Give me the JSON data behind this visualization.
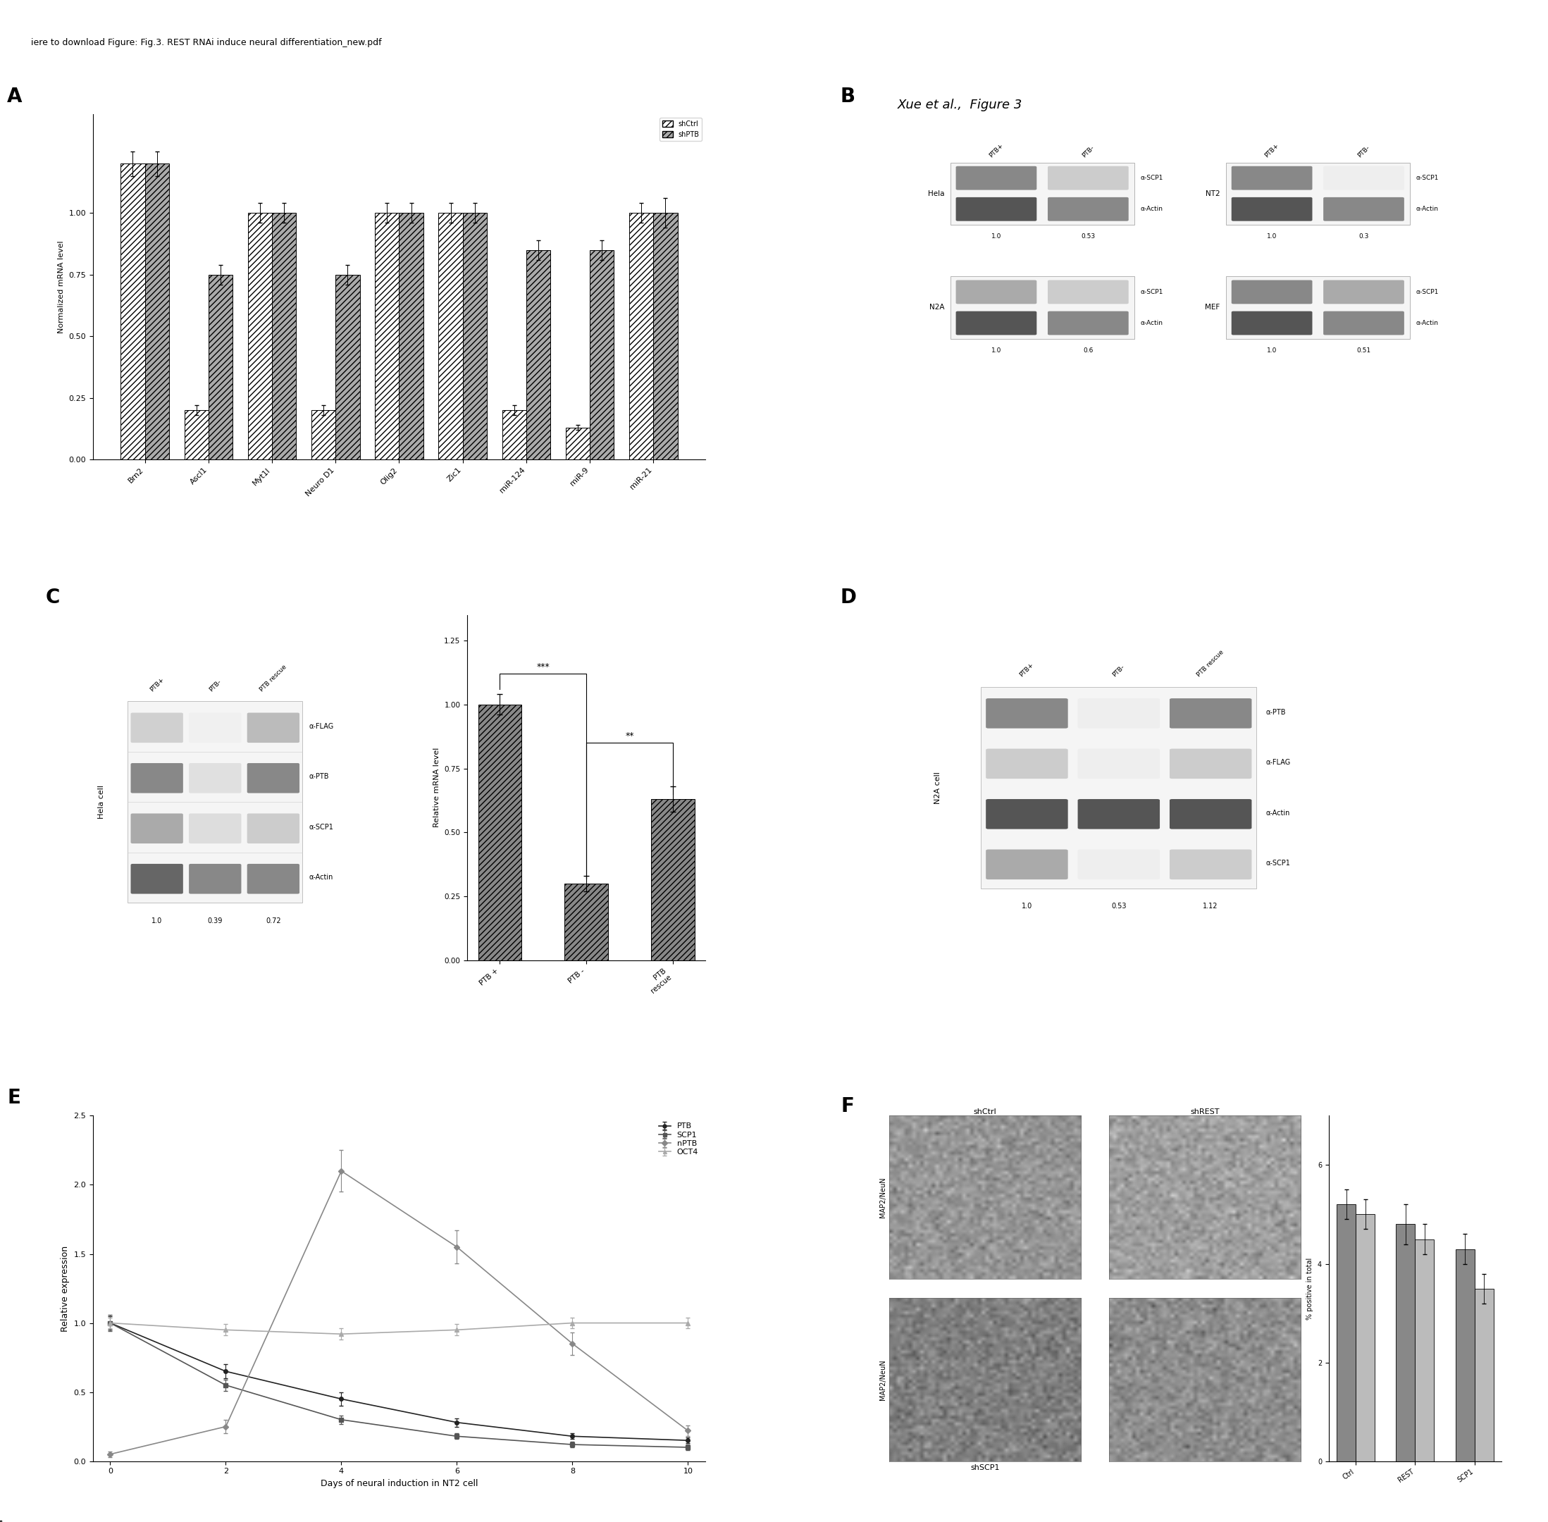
{
  "header_text": "iere to download Figure: Fig.3. REST RNAi induce neural differentiation_new.pdf",
  "title_text": "Xue et al.,  Figure 3",
  "panel_A": {
    "label": "A",
    "ylabel": "Normalized mRNA level",
    "categories": [
      "Brn2",
      "Ascl1",
      "Myt1l",
      "Neuro D1",
      "Olig2",
      "Zic1",
      "miR-124",
      "miR-9",
      "miR-21"
    ],
    "shCtrl": [
      1.2,
      0.2,
      1.0,
      0.2,
      1.0,
      1.0,
      0.2,
      0.13,
      1.0
    ],
    "shPTB": [
      1.2,
      0.75,
      1.0,
      0.75,
      1.0,
      1.0,
      0.85,
      0.85,
      1.0
    ],
    "shCtrl_err": [
      0.05,
      0.02,
      0.04,
      0.02,
      0.04,
      0.04,
      0.02,
      0.01,
      0.04
    ],
    "shPTB_err": [
      0.05,
      0.04,
      0.04,
      0.04,
      0.04,
      0.04,
      0.04,
      0.04,
      0.06
    ],
    "ylim": [
      0,
      1.4
    ],
    "yticks": [
      0,
      0.25,
      0.5,
      0.75,
      1.0
    ],
    "legend_shCtrl": "shCtrl",
    "legend_shPTB": "shPTB"
  },
  "panel_B_label": "B",
  "panel_C_label": "C",
  "panel_C_bar": {
    "ylabel": "Relative mRNA level",
    "categories": [
      "PTB +",
      "PTB -",
      "PTB\nrescue"
    ],
    "values": [
      1.0,
      0.3,
      0.63
    ],
    "errors": [
      0.04,
      0.03,
      0.05
    ],
    "ylim": [
      0,
      1.35
    ],
    "yticks": [
      0.0,
      0.25,
      0.5,
      0.75,
      1.0,
      1.25
    ]
  },
  "panel_D_label": "D",
  "panel_E": {
    "label": "E",
    "xlabel": "Days of neural induction in NT2 cell",
    "ylabel": "Relative expression",
    "x": [
      0,
      2,
      4,
      6,
      8,
      10
    ],
    "PTB": [
      1.0,
      0.65,
      0.45,
      0.28,
      0.18,
      0.15
    ],
    "SCP1": [
      1.0,
      0.55,
      0.3,
      0.18,
      0.12,
      0.1
    ],
    "nPTB": [
      0.05,
      0.25,
      2.1,
      1.55,
      0.85,
      0.22
    ],
    "OCT4": [
      1.0,
      0.95,
      0.92,
      0.95,
      1.0,
      1.0
    ],
    "PTB_err": [
      0.05,
      0.05,
      0.05,
      0.03,
      0.02,
      0.02
    ],
    "SCP1_err": [
      0.06,
      0.04,
      0.03,
      0.02,
      0.02,
      0.02
    ],
    "nPTB_err": [
      0.02,
      0.05,
      0.15,
      0.12,
      0.08,
      0.04
    ],
    "OCT4_err": [
      0.04,
      0.04,
      0.04,
      0.04,
      0.04,
      0.04
    ],
    "ylim": [
      0,
      2.5
    ],
    "yticks": [
      0.0,
      0.5,
      1.0,
      1.5,
      2.0,
      2.5
    ]
  },
  "panel_F_label": "F",
  "panel_F_bar": {
    "ylabel": "% positive in total",
    "categories": [
      "Ctrl",
      "REST",
      "SCP1"
    ],
    "series1_vals": [
      5.2,
      4.8,
      4.3
    ],
    "series2_vals": [
      5.0,
      4.5,
      3.5
    ],
    "errors1": [
      0.3,
      0.4,
      0.3
    ],
    "errors2": [
      0.3,
      0.3,
      0.3
    ],
    "ylim": [
      0,
      7
    ],
    "yticks": [
      0,
      2,
      4,
      6
    ]
  },
  "wb_B_hela": {
    "col_labels": [
      "PTB+",
      "PTB-"
    ],
    "row_labels": [
      "α-SCP1",
      "α-Actin"
    ],
    "values": [
      "1.0",
      "0.53"
    ],
    "cell_label": "Hela",
    "band_colors": [
      [
        "#888888",
        "#cccccc"
      ],
      [
        "#555555",
        "#888888"
      ]
    ]
  },
  "wb_B_NT2": {
    "col_labels": [
      "PTB+",
      "PTB-"
    ],
    "row_labels": [
      "α-SCP1",
      "α-Actin"
    ],
    "values": [
      "1.0",
      "0.3"
    ],
    "cell_label": "NT2",
    "band_colors": [
      [
        "#888888",
        "#eeeeee"
      ],
      [
        "#555555",
        "#888888"
      ]
    ]
  },
  "wb_B_N2A": {
    "col_labels": null,
    "row_labels": [
      "α-SCP1",
      "α-Actin"
    ],
    "values": [
      "1.0",
      "0.6"
    ],
    "cell_label": "N2A",
    "band_colors": [
      [
        "#aaaaaa",
        "#cccccc"
      ],
      [
        "#555555",
        "#888888"
      ]
    ]
  },
  "wb_B_MEF": {
    "col_labels": null,
    "row_labels": [
      "α-SCP1",
      "α-Actin"
    ],
    "values": [
      "1.0",
      "0.51"
    ],
    "cell_label": "MEF",
    "band_colors": [
      [
        "#888888",
        "#aaaaaa"
      ],
      [
        "#555555",
        "#888888"
      ]
    ]
  },
  "wb_C": {
    "col_labels": [
      "PTB+",
      "PTB-",
      "PTB rescue"
    ],
    "row_labels": [
      "α-FLAG",
      "α-PTB",
      "α-SCP1",
      "α-Actin"
    ],
    "values_bottom": [
      "1.0",
      "0.39",
      "0.72"
    ],
    "cell_label": "Hela cell",
    "band_colors": [
      [
        "#d0d0d0",
        "#f0f0f0",
        "#bbbbbb"
      ],
      [
        "#888888",
        "#e0e0e0",
        "#888888"
      ],
      [
        "#aaaaaa",
        "#dddddd",
        "#cccccc"
      ],
      [
        "#666666",
        "#888888",
        "#888888"
      ]
    ]
  },
  "wb_D": {
    "col_labels": [
      "PTB+",
      "PTB-",
      "PTB rescue"
    ],
    "row_labels": [
      "α-PTB",
      "α-FLAG",
      "α-Actin",
      "α-SCP1"
    ],
    "values_bottom": [
      "1.0",
      "0.53",
      "1.12"
    ],
    "cell_label": "N2A cell",
    "band_colors": [
      [
        "#888888",
        "#eeeeee",
        "#888888"
      ],
      [
        "#cccccc",
        "#eeeeee",
        "#cccccc"
      ],
      [
        "#555555",
        "#555555",
        "#555555"
      ],
      [
        "#aaaaaa",
        "#eeeeee",
        "#cccccc"
      ]
    ]
  }
}
